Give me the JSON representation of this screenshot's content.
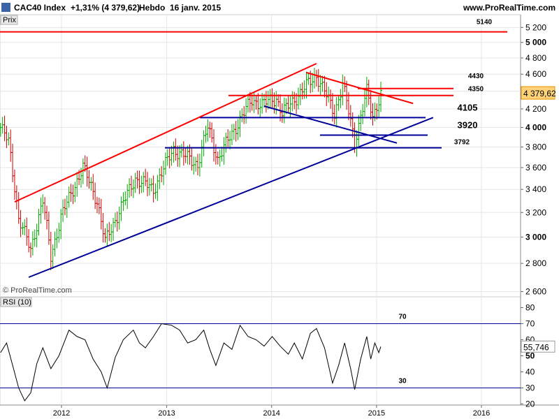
{
  "header": {
    "symbol": "CAC40 Index",
    "change": "+1,31% (4 379,62)",
    "period": "Hebdo",
    "date": "16 janv. 2015",
    "site": "www.ProRealTime.com"
  },
  "price_panel_label": "Prix",
  "rsi_panel_label": "RSI (10)",
  "copyright": "© ProRealTime.com",
  "colors": {
    "up_bar": "#00aa00",
    "down_bar": "#cc0000",
    "resistance": "#ff0000",
    "support": "#000099",
    "rsi_line": "#000000",
    "grid": "#e6e6e6",
    "badge_bg": "#ffd27a",
    "badge_border": "#e69500"
  },
  "chart_data": [
    {
      "type": "candlestick",
      "subtype": "OHLC bars, weekly",
      "title": "CAC40 Index",
      "ylabel": "Prix",
      "y_axis": "log",
      "ylim": [
        2560,
        5300
      ],
      "yticks": [
        "2 600",
        "2 800",
        "3 000",
        "3 200",
        "3 400",
        "3 600",
        "3 800",
        "4 000",
        "4 200",
        "4 400",
        "4 600",
        "4 800",
        "5 000",
        "5 200"
      ],
      "yticks_bold": [
        "3 000",
        "4 000",
        "5 000"
      ],
      "xticks": [
        "2012",
        "2013",
        "2014",
        "2015",
        "2016"
      ],
      "last_value": "4 379,62",
      "close_path": [
        {
          "x": "2011-06-03",
          "y": 4000
        },
        {
          "x": "2011-07-01",
          "y": 3850
        },
        {
          "x": "2011-08-05",
          "y": 3150
        },
        {
          "x": "2011-09-16",
          "y": 2900
        },
        {
          "x": "2011-10-28",
          "y": 3300
        },
        {
          "x": "2011-11-25",
          "y": 2850
        },
        {
          "x": "2011-12-30",
          "y": 3160
        },
        {
          "x": "2012-03-16",
          "y": 3600
        },
        {
          "x": "2012-05-04",
          "y": 3300
        },
        {
          "x": "2012-06-01",
          "y": 2960
        },
        {
          "x": "2012-09-14",
          "y": 3500
        },
        {
          "x": "2012-11-16",
          "y": 3400
        },
        {
          "x": "2013-01-25",
          "y": 3780
        },
        {
          "x": "2013-04-19",
          "y": 3630
        },
        {
          "x": "2013-05-24",
          "y": 4000
        },
        {
          "x": "2013-06-28",
          "y": 3680
        },
        {
          "x": "2013-10-25",
          "y": 4300
        },
        {
          "x": "2013-11-29",
          "y": 4250
        },
        {
          "x": "2014-01-17",
          "y": 4320
        },
        {
          "x": "2014-02-07",
          "y": 4150
        },
        {
          "x": "2014-06-06",
          "y": 4590
        },
        {
          "x": "2014-08-08",
          "y": 4150
        },
        {
          "x": "2014-09-05",
          "y": 4480
        },
        {
          "x": "2014-10-17",
          "y": 3850
        },
        {
          "x": "2014-11-28",
          "y": 4390
        },
        {
          "x": "2014-12-19",
          "y": 4110
        },
        {
          "x": "2015-01-16",
          "y": 4379.62
        }
      ],
      "horizontal_levels": [
        {
          "value": 5140,
          "label": "5140",
          "color": "red"
        },
        {
          "value": 4430,
          "label": "4430",
          "color": "red"
        },
        {
          "value": 4350,
          "label": "4350",
          "color": "red"
        },
        {
          "value": 4105,
          "label": "4105",
          "color": "blue"
        },
        {
          "value": 3920,
          "label": "3920",
          "color": "blue"
        },
        {
          "value": 3792,
          "label": "3792",
          "color": "blue"
        }
      ],
      "trendlines": [
        {
          "color": "red",
          "from": {
            "x": "2011-07-22",
            "y": 3290
          },
          "to": {
            "x": "2014-06-06",
            "y": 4730
          }
        },
        {
          "color": "red",
          "from": {
            "x": "2014-05-02",
            "y": 4620
          },
          "to": {
            "x": "2015-05-08",
            "y": 4260
          }
        },
        {
          "color": "blue",
          "from": {
            "x": "2011-09-09",
            "y": 2700
          },
          "to": {
            "x": "2015-07-17",
            "y": 4105
          }
        },
        {
          "color": "blue",
          "from": {
            "x": "2013-12-06",
            "y": 4230
          },
          "to": {
            "x": "2015-03-13",
            "y": 3840
          }
        }
      ]
    },
    {
      "type": "line",
      "title": "RSI (10)",
      "ylim": [
        18,
        87
      ],
      "yticks": [
        "20",
        "30",
        "40",
        "50",
        "60",
        "70",
        "80"
      ],
      "yticks_bold": [
        "50"
      ],
      "xticks": [
        "2012",
        "2013",
        "2014",
        "2015",
        "2016"
      ],
      "last_value": "55,746",
      "reference_lines": [
        {
          "value": 70,
          "label": "70"
        },
        {
          "value": 30,
          "label": "30"
        }
      ],
      "series": [
        {
          "x": [
            "2011-06-03",
            "2011-06-24",
            "2011-07-15",
            "2011-08-05",
            "2011-08-26",
            "2011-09-16",
            "2011-10-07",
            "2011-10-28",
            "2011-11-25",
            "2011-12-23",
            "2012-01-27",
            "2012-02-24",
            "2012-03-23",
            "2012-04-20",
            "2012-05-18",
            "2012-06-08",
            "2012-07-06",
            "2012-08-03",
            "2012-09-07",
            "2012-09-28",
            "2012-10-19",
            "2012-11-16",
            "2012-12-14",
            "2013-01-18",
            "2013-02-15",
            "2013-03-15",
            "2013-04-12",
            "2013-05-10",
            "2013-05-31",
            "2013-06-21",
            "2013-07-19",
            "2013-08-16",
            "2013-09-13",
            "2013-10-11",
            "2013-11-08",
            "2013-12-06",
            "2014-01-03",
            "2014-01-31",
            "2014-02-28",
            "2014-03-21",
            "2014-04-18",
            "2014-05-16",
            "2014-06-06",
            "2014-07-04",
            "2014-08-01",
            "2014-08-22",
            "2014-09-12",
            "2014-10-03",
            "2014-10-17",
            "2014-11-07",
            "2014-11-28",
            "2014-12-12",
            "2014-12-26",
            "2015-01-09",
            "2015-01-16"
          ],
          "values": [
            52,
            58,
            44,
            30,
            22,
            27,
            45,
            55,
            42,
            50,
            66,
            62,
            60,
            48,
            40,
            30,
            49,
            60,
            66,
            58,
            55,
            62,
            70,
            69,
            66,
            58,
            60,
            66,
            54,
            44,
            58,
            54,
            69,
            62,
            60,
            56,
            62,
            56,
            51,
            58,
            48,
            64,
            67,
            55,
            33,
            44,
            58,
            42,
            29,
            48,
            62,
            48,
            58,
            52,
            55.746
          ]
        }
      ]
    }
  ]
}
